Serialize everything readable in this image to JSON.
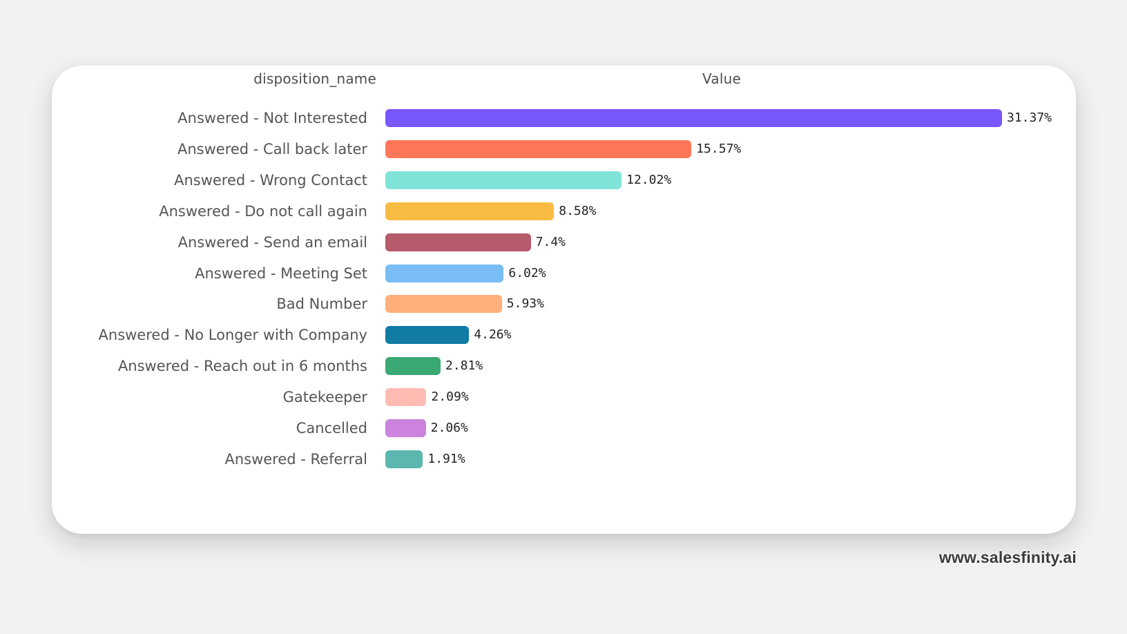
{
  "chart_data": {
    "type": "bar",
    "orientation": "horizontal",
    "headers": {
      "category": "disposition_name",
      "value": "Value"
    },
    "categories": [
      "Answered - Not Interested",
      "Answered - Call back later",
      "Answered - Wrong Contact",
      "Answered - Do not call again",
      "Answered - Send an email",
      "Answered - Meeting Set",
      "Bad Number",
      "Answered - No Longer with Company",
      "Answered - Reach out in 6 months",
      "Gatekeeper",
      "Cancelled",
      "Answered - Referral"
    ],
    "values": [
      31.37,
      15.57,
      12.02,
      8.58,
      7.4,
      6.02,
      5.93,
      4.26,
      2.81,
      2.09,
      2.06,
      1.91
    ],
    "value_labels": [
      "31.37%",
      "15.57%",
      "12.02%",
      "8.58%",
      "7.4%",
      "6.02%",
      "5.93%",
      "4.26%",
      "2.81%",
      "2.09%",
      "2.06%",
      "1.91%"
    ],
    "unit": "%",
    "colors": [
      "#7857fd",
      "#ff7759",
      "#80e3d8",
      "#f9bc42",
      "#b55b6b",
      "#78bdf5",
      "#ffb07a",
      "#107ba3",
      "#3aa873",
      "#ffbbb2",
      "#cc83dd",
      "#5cb7ae"
    ]
  },
  "watermark": "www.salesfinity.ai"
}
